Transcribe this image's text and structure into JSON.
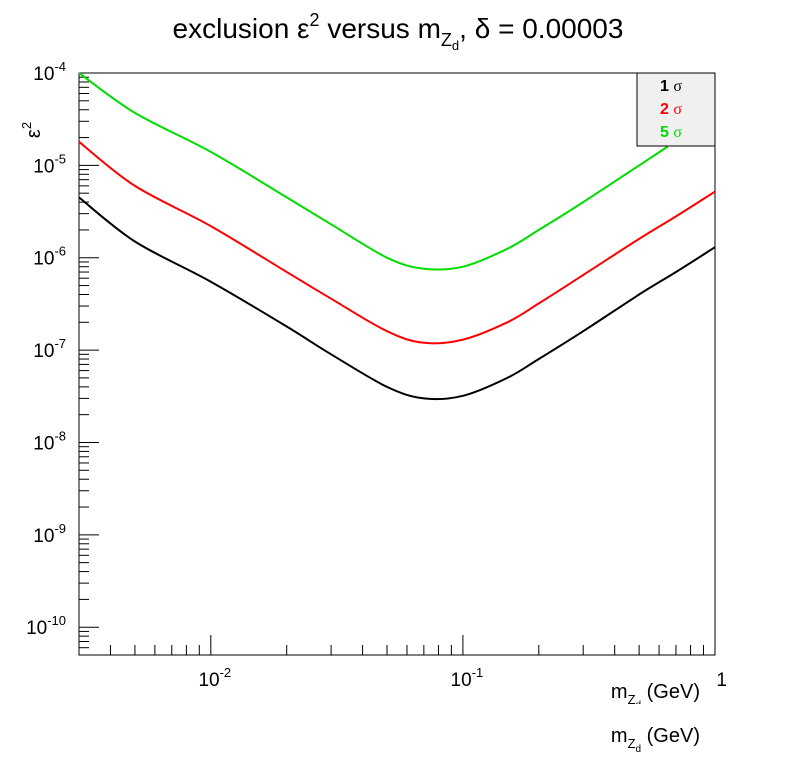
{
  "title": {
    "prefix": "exclusion ε",
    "sup": "2",
    "mid": " versus m",
    "sub": "Z",
    "subsub": "d",
    "suffix": ", δ = 0.00003"
  },
  "ylabel": {
    "base": "ε",
    "sup": "2"
  },
  "xlabel": {
    "base": "m",
    "sub": "Z",
    "subsub": "d",
    "unit": " (GeV)"
  },
  "chart_data": {
    "type": "line",
    "title": "exclusion ε² versus m_{Z_d}, δ = 0.00003",
    "xlabel": "m_{Z_d} (GeV)",
    "ylabel": "ε²",
    "xscale": "log",
    "yscale": "log",
    "xlim": [
      0.003,
      1.0
    ],
    "ylim": [
      5e-11,
      0.0001
    ],
    "x_tick_labels": [
      {
        "value": 0.01,
        "base": "10",
        "exp": "-2"
      },
      {
        "value": 0.1,
        "base": "10",
        "exp": "-1"
      },
      {
        "value": 1,
        "base": "1",
        "exp": ""
      }
    ],
    "y_tick_labels": [
      {
        "value": 1e-10,
        "base": "10",
        "exp": "-10"
      },
      {
        "value": 1e-09,
        "base": "10",
        "exp": "-9"
      },
      {
        "value": 1e-08,
        "base": "10",
        "exp": "-8"
      },
      {
        "value": 1e-07,
        "base": "10",
        "exp": "-7"
      },
      {
        "value": 1e-06,
        "base": "10",
        "exp": "-6"
      },
      {
        "value": 1e-05,
        "base": "10",
        "exp": "-5"
      },
      {
        "value": 0.0001,
        "base": "10",
        "exp": "-4"
      }
    ],
    "legend_position": "top-right",
    "series": [
      {
        "name": "1 σ",
        "legend_num": "1",
        "legend_sym": "σ",
        "color": "#000000",
        "points": [
          [
            0.003,
            4.5e-06
          ],
          [
            0.005,
            1.5e-06
          ],
          [
            0.01,
            5.5e-07
          ],
          [
            0.02,
            1.8e-07
          ],
          [
            0.03,
            9e-08
          ],
          [
            0.05,
            4e-08
          ],
          [
            0.07,
            3e-08
          ],
          [
            0.1,
            3.2e-08
          ],
          [
            0.15,
            5e-08
          ],
          [
            0.2,
            8e-08
          ],
          [
            0.3,
            1.6e-07
          ],
          [
            0.5,
            4e-07
          ],
          [
            0.7,
            7e-07
          ],
          [
            1.0,
            1.3e-06
          ]
        ]
      },
      {
        "name": "2 σ",
        "legend_num": "2",
        "legend_sym": "σ",
        "color": "#ff0000",
        "points": [
          [
            0.003,
            1.8e-05
          ],
          [
            0.005,
            6e-06
          ],
          [
            0.01,
            2.2e-06
          ],
          [
            0.02,
            7e-07
          ],
          [
            0.03,
            3.6e-07
          ],
          [
            0.05,
            1.6e-07
          ],
          [
            0.07,
            1.2e-07
          ],
          [
            0.1,
            1.3e-07
          ],
          [
            0.15,
            2e-07
          ],
          [
            0.2,
            3.2e-07
          ],
          [
            0.3,
            6.5e-07
          ],
          [
            0.5,
            1.6e-06
          ],
          [
            0.7,
            2.8e-06
          ],
          [
            1.0,
            5.2e-06
          ]
        ]
      },
      {
        "name": "5 σ",
        "legend_num": "5",
        "legend_sym": "σ",
        "color": "#00dd00",
        "points": [
          [
            0.003,
            0.0001
          ],
          [
            0.005,
            3.7e-05
          ],
          [
            0.01,
            1.4e-05
          ],
          [
            0.02,
            4.5e-06
          ],
          [
            0.03,
            2.3e-06
          ],
          [
            0.05,
            1e-06
          ],
          [
            0.07,
            7.6e-07
          ],
          [
            0.1,
            8e-07
          ],
          [
            0.15,
            1.25e-06
          ],
          [
            0.2,
            2e-06
          ],
          [
            0.3,
            4e-06
          ],
          [
            0.5,
            1e-05
          ],
          [
            0.65,
            1.6e-05
          ]
        ]
      }
    ]
  }
}
